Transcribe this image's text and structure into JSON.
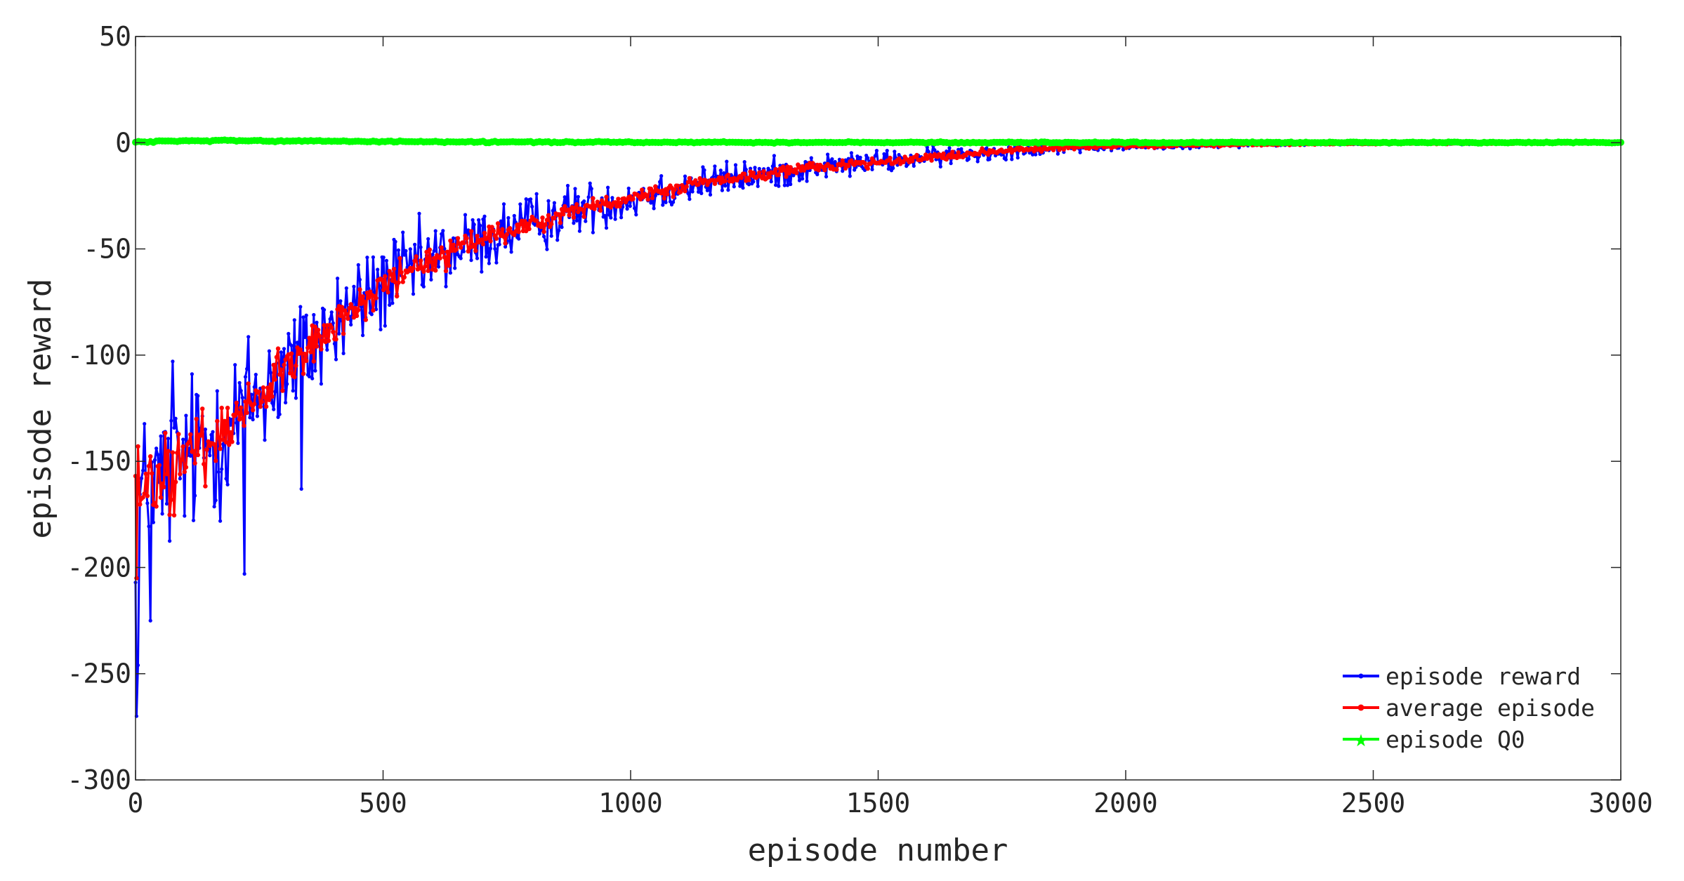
{
  "chart_data": {
    "type": "line",
    "title": "",
    "xlabel": "episode number",
    "ylabel": "episode reward",
    "xlim": [
      0,
      3000
    ],
    "ylim": [
      -300,
      50
    ],
    "xticks": [
      0,
      500,
      1000,
      1500,
      2000,
      2500,
      3000
    ],
    "yticks": [
      -300,
      -250,
      -200,
      -150,
      -100,
      -50,
      0,
      50
    ],
    "grid": false,
    "legend_position": "bottom-right",
    "series": [
      {
        "name": "episode reward",
        "color": "#0000ff",
        "marker": "dot",
        "trend": {
          "x": [
            0,
            25,
            50,
            100,
            150,
            200,
            250,
            300,
            350,
            400,
            450,
            500,
            600,
            700,
            800,
            900,
            1000,
            1100,
            1200,
            1300,
            1400,
            1500,
            1600,
            1700,
            1800,
            1900,
            2000,
            2200,
            2400,
            2600,
            2800,
            3000
          ],
          "y": [
            -170,
            -165,
            -160,
            -150,
            -140,
            -130,
            -118,
            -107,
            -97,
            -86,
            -76,
            -67,
            -55,
            -46,
            -38,
            -31,
            -26,
            -21,
            -17,
            -14,
            -11,
            -9,
            -7,
            -5,
            -3,
            -2,
            -1.5,
            -1,
            -0.5,
            -0.3,
            -0.2,
            -0.1
          ]
        },
        "noise": {
          "x": [
            0,
            200,
            400,
            600,
            800,
            1000,
            1200,
            1400,
            1600,
            1800,
            2000,
            2200,
            2400,
            3000
          ],
          "amplitude": [
            35,
            32,
            22,
            16,
            12,
            9,
            7,
            5,
            4,
            3,
            2,
            1,
            0.5,
            0.3
          ]
        },
        "extremes": [
          {
            "x": 2,
            "y": -270
          },
          {
            "x": 5,
            "y": -246
          },
          {
            "x": 30,
            "y": -225
          },
          {
            "x": 75,
            "y": -103
          },
          {
            "x": 220,
            "y": -203
          },
          {
            "x": 335,
            "y": -163
          }
        ]
      },
      {
        "name": "average episode",
        "color": "#ff0000",
        "marker": "dot",
        "trend": {
          "x": [
            0,
            25,
            50,
            100,
            150,
            200,
            250,
            300,
            350,
            400,
            450,
            500,
            600,
            700,
            800,
            900,
            1000,
            1100,
            1200,
            1300,
            1400,
            1500,
            1600,
            1700,
            1800,
            1900,
            2000,
            2200,
            2400,
            2600,
            2800,
            3000
          ],
          "y": [
            -170,
            -165,
            -160,
            -150,
            -140,
            -130,
            -118,
            -107,
            -97,
            -86,
            -76,
            -67,
            -55,
            -46,
            -38,
            -31,
            -26,
            -21,
            -17,
            -14,
            -11,
            -9,
            -7,
            -5,
            -3,
            -2,
            -1.5,
            -1,
            -0.5,
            -0.3,
            -0.2,
            -0.1
          ]
        },
        "noise": {
          "x": [
            0,
            200,
            400,
            600,
            800,
            1000,
            1200,
            1400,
            1600,
            1800,
            2000,
            2200,
            2400,
            3000
          ],
          "amplitude": [
            18,
            12,
            8,
            6,
            4,
            3,
            2.5,
            2,
            1.5,
            1,
            0.8,
            0.5,
            0.3,
            0.2
          ]
        },
        "extremes": [
          {
            "x": 2,
            "y": -205
          },
          {
            "x": 5,
            "y": -143
          }
        ]
      },
      {
        "name": "episode Q0",
        "color": "#00ff00",
        "marker": "star",
        "trend": {
          "x": [
            0,
            100,
            200,
            300,
            500,
            1000,
            1500,
            2000,
            2500,
            3000
          ],
          "y": [
            0.3,
            0.9,
            1.0,
            0.8,
            0.5,
            0.2,
            0.1,
            0.1,
            0.1,
            0.1
          ]
        },
        "noise": {
          "x": [
            0,
            3000
          ],
          "amplitude": [
            0.3,
            0.2
          ]
        }
      }
    ]
  }
}
